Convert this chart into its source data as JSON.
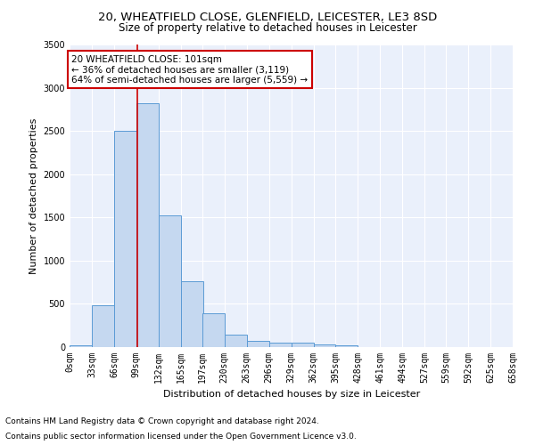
{
  "title1": "20, WHEATFIELD CLOSE, GLENFIELD, LEICESTER, LE3 8SD",
  "title2": "Size of property relative to detached houses in Leicester",
  "xlabel": "Distribution of detached houses by size in Leicester",
  "ylabel": "Number of detached properties",
  "footnote1": "Contains HM Land Registry data © Crown copyright and database right 2024.",
  "footnote2": "Contains public sector information licensed under the Open Government Licence v3.0.",
  "annotation_line1": "20 WHEATFIELD CLOSE: 101sqm",
  "annotation_line2": "← 36% of detached houses are smaller (3,119)",
  "annotation_line3": "64% of semi-detached houses are larger (5,559) →",
  "bar_color": "#c5d8f0",
  "bar_edge_color": "#5b9bd5",
  "vline_color": "#cc0000",
  "vline_x": 101,
  "bin_width": 33,
  "bin_starts": [
    0,
    33,
    66,
    99,
    132,
    165,
    197,
    230,
    263,
    296,
    329,
    362,
    395,
    428,
    461,
    494,
    527,
    559,
    592,
    625
  ],
  "bar_heights": [
    20,
    480,
    2500,
    2820,
    1520,
    760,
    390,
    140,
    70,
    55,
    55,
    35,
    20,
    5,
    2,
    2,
    1,
    1,
    0,
    0
  ],
  "xlim": [
    0,
    659
  ],
  "ylim": [
    0,
    3500
  ],
  "yticks": [
    0,
    500,
    1000,
    1500,
    2000,
    2500,
    3000,
    3500
  ],
  "xtick_labels": [
    "0sqm",
    "33sqm",
    "66sqm",
    "99sqm",
    "132sqm",
    "165sqm",
    "197sqm",
    "230sqm",
    "263sqm",
    "296sqm",
    "329sqm",
    "362sqm",
    "395sqm",
    "428sqm",
    "461sqm",
    "494sqm",
    "527sqm",
    "559sqm",
    "592sqm",
    "625sqm",
    "658sqm"
  ],
  "xtick_positions": [
    0,
    33,
    66,
    99,
    132,
    165,
    197,
    230,
    263,
    296,
    329,
    362,
    395,
    428,
    461,
    494,
    527,
    559,
    592,
    625,
    658
  ],
  "bg_color": "#eaf0fb",
  "grid_color": "#ffffff",
  "annotation_box_color": "#ffffff",
  "annotation_box_edge": "#cc0000",
  "title1_fontsize": 9.5,
  "title2_fontsize": 8.5,
  "axis_label_fontsize": 8,
  "tick_fontsize": 7,
  "annotation_fontsize": 7.5,
  "footnote_fontsize": 6.5
}
